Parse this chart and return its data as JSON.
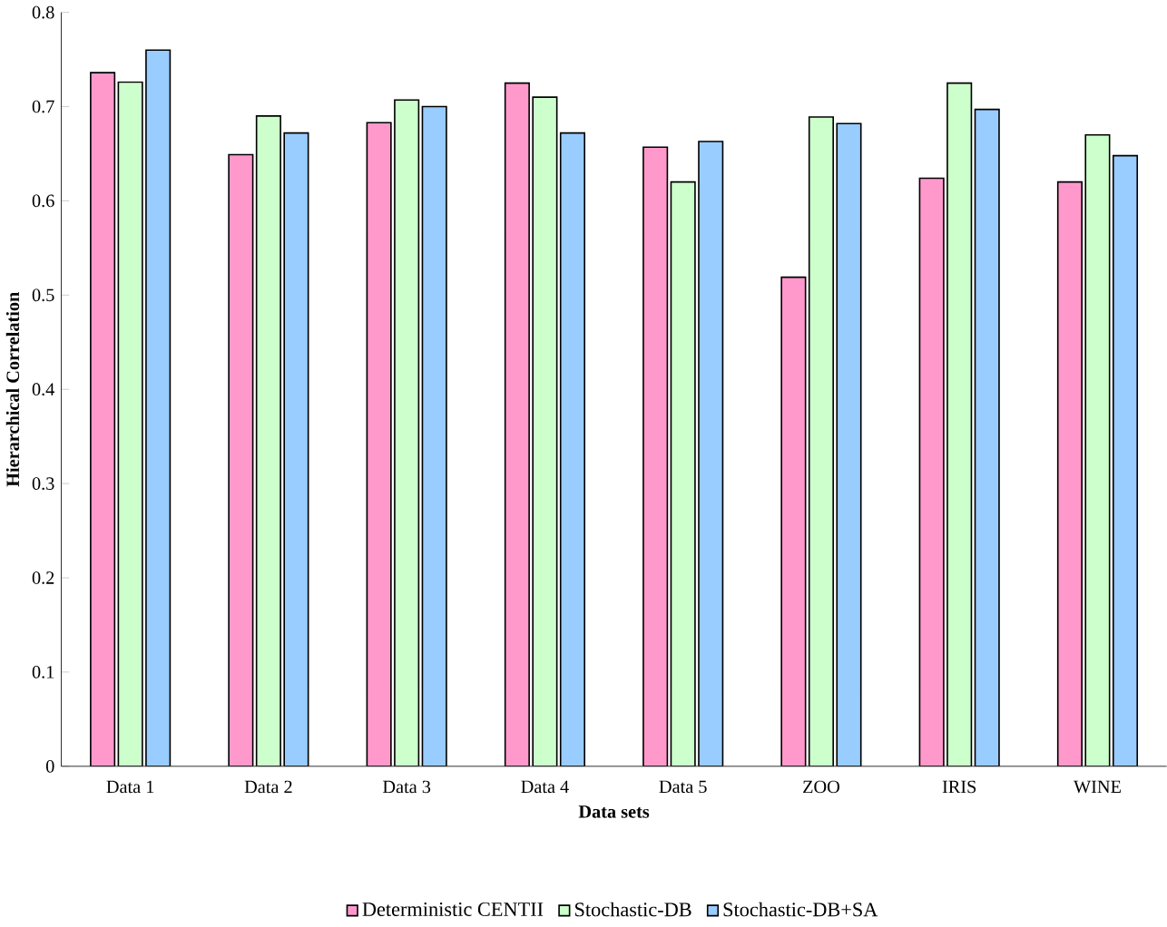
{
  "chart_data": {
    "type": "bar",
    "xlabel": "Data sets",
    "ylabel": "Hierarchical Correlation",
    "categories": [
      "Data 1",
      "Data 2",
      "Data 3",
      "Data 4",
      "Data 5",
      "ZOO",
      "IRIS",
      "WINE"
    ],
    "series": [
      {
        "name": "Deterministic CENTII",
        "color": "#ff99cc",
        "values": [
          0.736,
          0.649,
          0.683,
          0.725,
          0.657,
          0.519,
          0.624,
          0.62
        ]
      },
      {
        "name": "Stochastic-DB",
        "color": "#ccffcc",
        "values": [
          0.726,
          0.69,
          0.707,
          0.71,
          0.62,
          0.689,
          0.725,
          0.67
        ]
      },
      {
        "name": "Stochastic-DB+SA",
        "color": "#99ccff",
        "values": [
          0.76,
          0.672,
          0.7,
          0.672,
          0.663,
          0.682,
          0.697,
          0.648
        ]
      }
    ],
    "ylim": [
      0,
      0.8
    ],
    "yticks": [
      0,
      0.1,
      0.2,
      0.3,
      0.4,
      0.5,
      0.6,
      0.7,
      0.8
    ],
    "grid": false,
    "legend": "bottom"
  }
}
